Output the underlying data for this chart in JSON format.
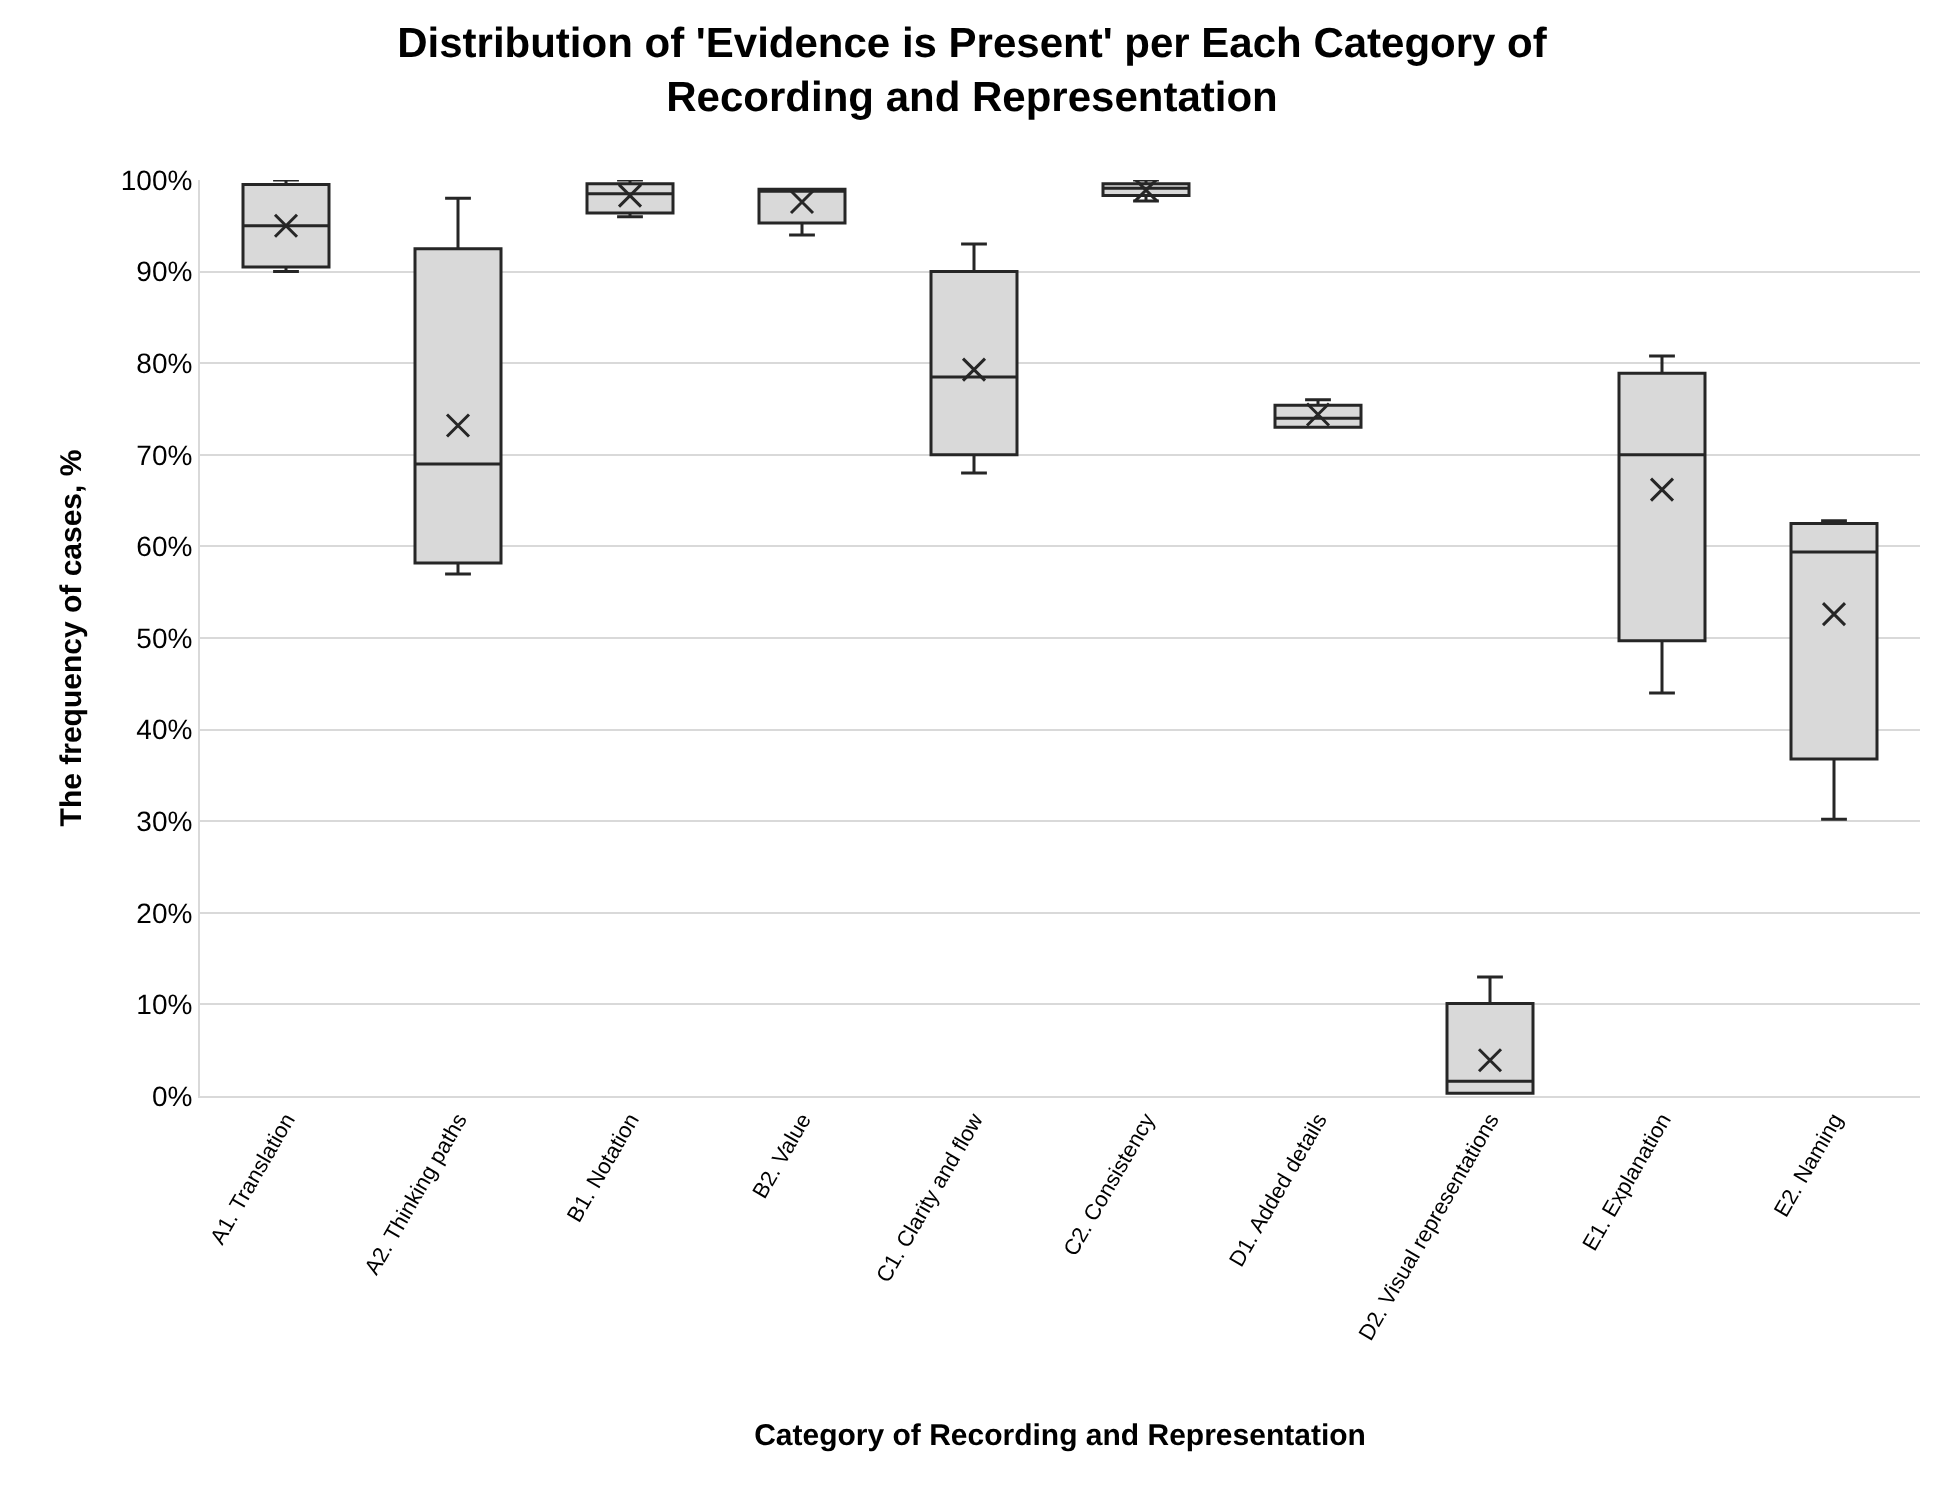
{
  "chart_data": {
    "type": "box",
    "title": "Distribution of 'Evidence is Present' per Each Category of Recording and Representation",
    "xlabel": "Category of Recording and Representation",
    "ylabel": "The frequency of cases, %",
    "categories": [
      "A1. Translation",
      "A2. Thinking paths",
      "B1. Notation",
      "B2. Value",
      "C1. Clarity and flow",
      "C2. Consistency",
      "D1. Added details",
      "D2. Visual representations",
      "E1. Explanation",
      "E2. Naming"
    ],
    "boxes": [
      {
        "low": 90,
        "q1": 90.5,
        "median": 95,
        "q3": 99.5,
        "high": 100,
        "mean": 95
      },
      {
        "low": 57,
        "q1": 58.2,
        "median": 69,
        "q3": 92.5,
        "high": 98,
        "mean": 73.2
      },
      {
        "low": 96,
        "q1": 96.4,
        "median": 98.5,
        "q3": 99.6,
        "high": 100,
        "mean": 98.3
      },
      {
        "low": 94,
        "q1": 95.3,
        "median": 99,
        "q3": 99,
        "high": 99,
        "mean": 97.6
      },
      {
        "low": 68,
        "q1": 70,
        "median": 78.5,
        "q3": 90,
        "high": 93,
        "mean": 79.3
      },
      {
        "low": 97.7,
        "q1": 98.3,
        "median": 99.1,
        "q3": 99.6,
        "high": 100,
        "mean": 98.9
      },
      {
        "low": 73,
        "q1": 73,
        "median": 74,
        "q3": 75.4,
        "high": 76,
        "mean": 74.4
      },
      {
        "low": 0.3,
        "q1": 0.3,
        "median": 1.6,
        "q3": 10.1,
        "high": 13,
        "mean": 3.9
      },
      {
        "low": 44,
        "q1": 49.7,
        "median": 70,
        "q3": 78.9,
        "high": 80.8,
        "mean": 66.2
      },
      {
        "low": 30.2,
        "q1": 36.8,
        "median": 59.4,
        "q3": 62.5,
        "high": 62.8,
        "mean": 52.6
      }
    ],
    "color": "#d9d9d9",
    "ylim": [
      0,
      100
    ],
    "yticks": [
      {
        "value": 0,
        "label": "0%"
      },
      {
        "value": 10,
        "label": "10%"
      },
      {
        "value": 20,
        "label": "20%"
      },
      {
        "value": 30,
        "label": "30%"
      },
      {
        "value": 40,
        "label": "40%"
      },
      {
        "value": 50,
        "label": "50%"
      },
      {
        "value": 60,
        "label": "60%"
      },
      {
        "value": 70,
        "label": "70%"
      },
      {
        "value": 80,
        "label": "80%"
      },
      {
        "value": 90,
        "label": "90%"
      },
      {
        "value": 100,
        "label": "100%"
      }
    ],
    "grid": "y"
  }
}
